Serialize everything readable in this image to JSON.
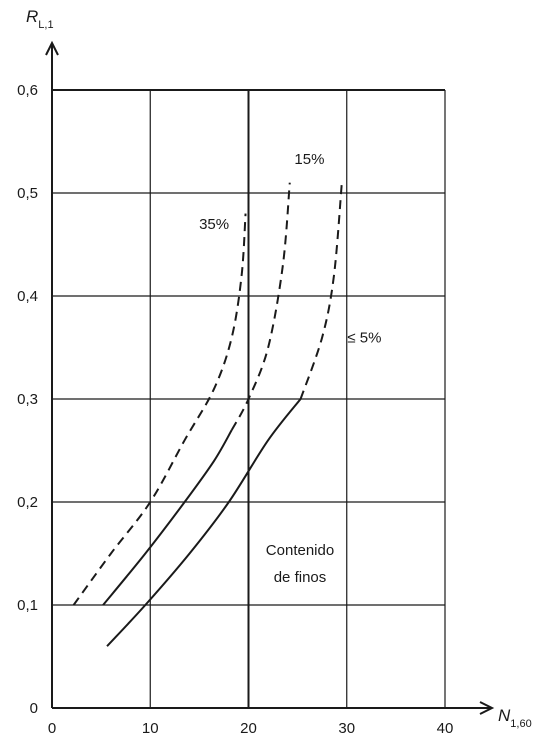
{
  "chart_data": {
    "type": "line",
    "xlabel": {
      "main": "N",
      "sub": "1,60"
    },
    "ylabel": {
      "main": "R",
      "sub": "L,1"
    },
    "xlim": [
      0,
      40
    ],
    "ylim": [
      0,
      0.6
    ],
    "x_ticks": [
      0,
      10,
      20,
      30,
      40
    ],
    "y_ticks": [
      0,
      0.1,
      0.2,
      0.3,
      0.4,
      0.5,
      0.6
    ],
    "x_tick_labels": [
      "0",
      "10",
      "20",
      "30",
      "40"
    ],
    "y_tick_labels": [
      "0",
      "0,1",
      "0,2",
      "0,3",
      "0,4",
      "0,5",
      "0,6"
    ],
    "grid": true,
    "annotation": [
      "Contenido",
      "de finos"
    ],
    "series": [
      {
        "name": "35%",
        "style": "dashed",
        "points": [
          [
            2.2,
            0.1
          ],
          [
            6,
            0.15
          ],
          [
            10,
            0.2
          ],
          [
            13.5,
            0.26
          ],
          [
            16.5,
            0.31
          ],
          [
            18.3,
            0.36
          ],
          [
            19.3,
            0.42
          ],
          [
            19.7,
            0.48
          ]
        ],
        "label_pos": [
          16.5,
          0.465
        ]
      },
      {
        "name": "15%",
        "style": "mixed",
        "points": [
          [
            5.2,
            0.1
          ],
          [
            9.5,
            0.15
          ],
          [
            13.5,
            0.2
          ],
          [
            16.5,
            0.24
          ],
          [
            18.3,
            0.27
          ],
          [
            20,
            0.3
          ],
          [
            22,
            0.35
          ],
          [
            23.5,
            0.43
          ],
          [
            24.2,
            0.51
          ]
        ],
        "solid_until": 18.3,
        "label_pos": [
          26.2,
          0.528
        ]
      },
      {
        "name": "≤ 5%",
        "style": "mixed",
        "points": [
          [
            5.6,
            0.06
          ],
          [
            9.5,
            0.1
          ],
          [
            14,
            0.15
          ],
          [
            18,
            0.2
          ],
          [
            22,
            0.26
          ],
          [
            25.3,
            0.3
          ],
          [
            27.5,
            0.36
          ],
          [
            28.7,
            0.42
          ],
          [
            29.5,
            0.51
          ]
        ],
        "solid_until": 25.3,
        "label_pos": [
          31.8,
          0.355
        ]
      }
    ]
  }
}
